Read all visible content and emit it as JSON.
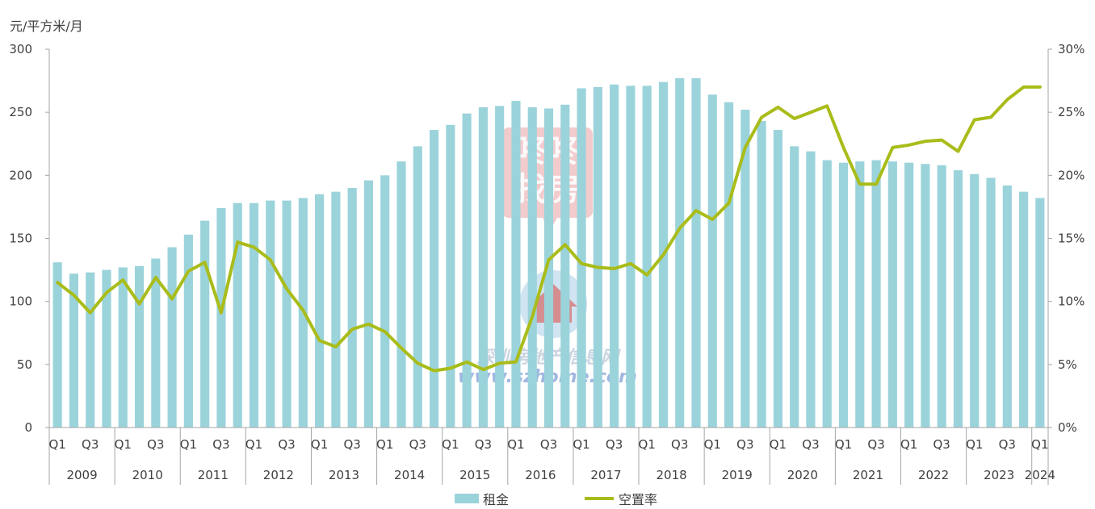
{
  "chart_data": {
    "type": "bar",
    "title": "",
    "y_left_unit": "元/平方米/月",
    "ylim_left": [
      0,
      300
    ],
    "ylim_right": [
      0,
      0.3
    ],
    "y_left_ticks": [
      "0",
      "50",
      "100",
      "150",
      "200",
      "250",
      "300"
    ],
    "y_right_ticks": [
      "0%",
      "5%",
      "10%",
      "15%",
      "20%",
      "25%",
      "30%"
    ],
    "quarter_labels": [
      "Q1",
      "Q3"
    ],
    "years": [
      "2009",
      "2010",
      "2011",
      "2012",
      "2013",
      "2014",
      "2015",
      "2016",
      "2017",
      "2018",
      "2019",
      "2020",
      "2021",
      "2022",
      "2023",
      "2024"
    ],
    "categories": [
      "2009Q1",
      "2009Q2",
      "2009Q3",
      "2009Q4",
      "2010Q1",
      "2010Q2",
      "2010Q3",
      "2010Q4",
      "2011Q1",
      "2011Q2",
      "2011Q3",
      "2011Q4",
      "2012Q1",
      "2012Q2",
      "2012Q3",
      "2012Q4",
      "2013Q1",
      "2013Q2",
      "2013Q3",
      "2013Q4",
      "2014Q1",
      "2014Q2",
      "2014Q3",
      "2014Q4",
      "2015Q1",
      "2015Q2",
      "2015Q3",
      "2015Q4",
      "2016Q1",
      "2016Q2",
      "2016Q3",
      "2016Q4",
      "2017Q1",
      "2017Q2",
      "2017Q3",
      "2017Q4",
      "2018Q1",
      "2018Q2",
      "2018Q3",
      "2018Q4",
      "2019Q1",
      "2019Q2",
      "2019Q3",
      "2019Q4",
      "2020Q1",
      "2020Q2",
      "2020Q3",
      "2020Q4",
      "2021Q1",
      "2021Q2",
      "2021Q3",
      "2021Q4",
      "2022Q1",
      "2022Q2",
      "2022Q3",
      "2022Q4",
      "2023Q1",
      "2023Q2",
      "2023Q3",
      "2023Q4",
      "2024Q1"
    ],
    "series": [
      {
        "name": "租金",
        "type": "bar",
        "axis": "left",
        "color": "#9bd3db",
        "values": [
          131,
          122,
          123,
          125,
          127,
          128,
          134,
          143,
          153,
          164,
          174,
          178,
          178,
          180,
          180,
          182,
          185,
          187,
          190,
          196,
          200,
          211,
          223,
          236,
          240,
          249,
          254,
          255,
          259,
          254,
          253,
          256,
          269,
          270,
          272,
          271,
          271,
          274,
          277,
          277,
          264,
          258,
          252,
          243,
          236,
          223,
          219,
          212,
          210,
          211,
          212,
          211,
          210,
          209,
          208,
          204,
          201,
          198,
          192,
          187,
          182
        ]
      },
      {
        "name": "空置率",
        "type": "line",
        "axis": "right",
        "color": "#a9bc1a",
        "values": [
          0.115,
          0.105,
          0.091,
          0.107,
          0.117,
          0.098,
          0.119,
          0.102,
          0.124,
          0.131,
          0.091,
          0.147,
          0.143,
          0.133,
          0.11,
          0.093,
          0.069,
          0.064,
          0.078,
          0.082,
          0.076,
          0.063,
          0.051,
          0.045,
          0.047,
          0.052,
          0.046,
          0.051,
          0.052,
          0.088,
          0.133,
          0.145,
          0.13,
          0.127,
          0.126,
          0.13,
          0.121,
          0.137,
          0.158,
          0.172,
          0.165,
          0.178,
          0.222,
          0.246,
          0.254,
          0.245,
          0.25,
          0.255,
          0.222,
          0.193,
          0.193,
          0.222,
          0.224,
          0.227,
          0.228,
          0.219,
          0.244,
          0.246,
          0.26,
          0.27,
          0.27
        ]
      }
    ],
    "legend": {
      "position": "bottom",
      "items": [
        "租金",
        "空置率"
      ]
    },
    "grid": false
  },
  "watermark": {
    "logo_text": [
      "咚咚",
      "找房"
    ],
    "site_name": "深圳房地产信息网",
    "site_url": "www.szhome.com"
  }
}
